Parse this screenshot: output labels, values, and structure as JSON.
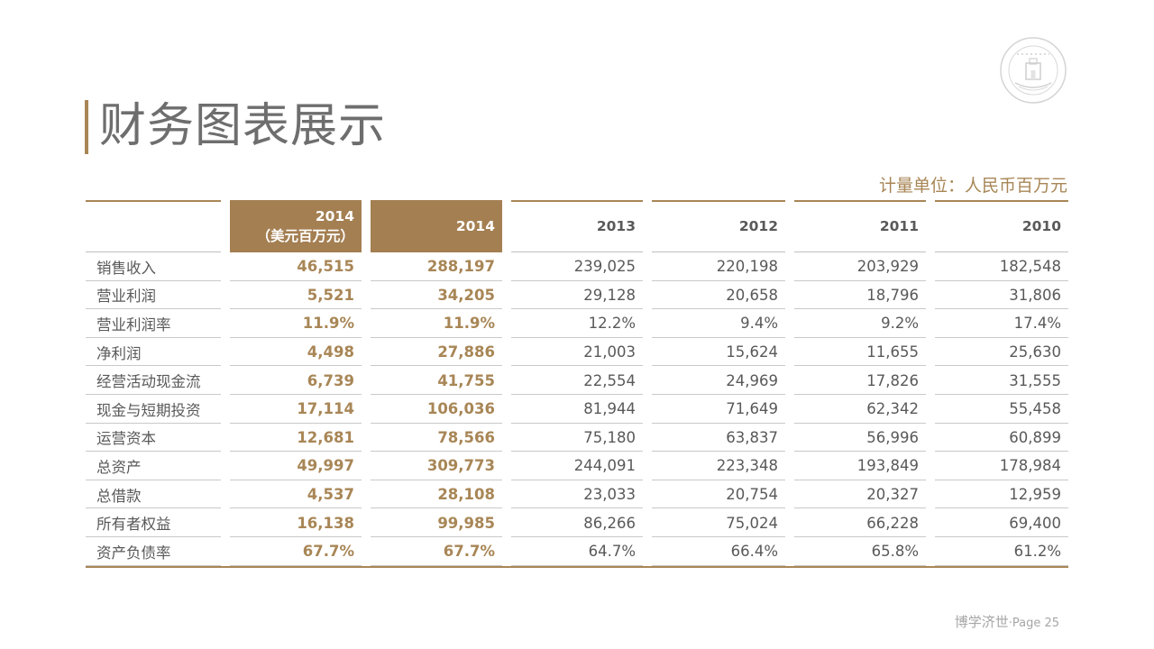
{
  "slide": {
    "title": "财务图表展示",
    "unit_label": "计量单位：人民币百万元",
    "footer_text": "博学济世",
    "footer_page": "·Page 25",
    "accent_color": "#a88656",
    "header_fill_color": "#a47f52",
    "seal_icon": "university-seal-icon"
  },
  "table": {
    "headers": [
      {
        "line1": "",
        "line2": ""
      },
      {
        "line1": "2014",
        "line2": "（美元百万元）"
      },
      {
        "line1": "2014",
        "line2": ""
      },
      {
        "line1": "2013",
        "line2": ""
      },
      {
        "line1": "2012",
        "line2": ""
      },
      {
        "line1": "2011",
        "line2": ""
      },
      {
        "line1": "2010",
        "line2": ""
      }
    ],
    "rows": [
      {
        "label": "销售收入",
        "v": [
          "46,515",
          "288,197",
          "239,025",
          "220,198",
          "203,929",
          "182,548"
        ]
      },
      {
        "label": "营业利润",
        "v": [
          "5,521",
          "34,205",
          "29,128",
          "20,658",
          "18,796",
          "31,806"
        ]
      },
      {
        "label": "营业利润率",
        "v": [
          "11.9%",
          "11.9%",
          "12.2%",
          "9.4%",
          "9.2%",
          "17.4%"
        ]
      },
      {
        "label": "净利润",
        "v": [
          "4,498",
          "27,886",
          "21,003",
          "15,624",
          "11,655",
          "25,630"
        ]
      },
      {
        "label": "经营活动现金流",
        "v": [
          "6,739",
          "41,755",
          "22,554",
          "24,969",
          "17,826",
          "31,555"
        ]
      },
      {
        "label": "现金与短期投资",
        "v": [
          "17,114",
          "106,036",
          "81,944",
          "71,649",
          "62,342",
          "55,458"
        ]
      },
      {
        "label": "运营资本",
        "v": [
          "12,681",
          "78,566",
          "75,180",
          "63,837",
          "56,996",
          "60,899"
        ]
      },
      {
        "label": "总资产",
        "v": [
          "49,997",
          "309,773",
          "244,091",
          "223,348",
          "193,849",
          "178,984"
        ]
      },
      {
        "label": "总借款",
        "v": [
          "4,537",
          "28,108",
          "23,033",
          "20,754",
          "20,327",
          "12,959"
        ]
      },
      {
        "label": "所有者权益",
        "v": [
          "16,138",
          "99,985",
          "86,266",
          "75,024",
          "66,228",
          "69,400"
        ]
      },
      {
        "label": "资产负债率",
        "v": [
          "67.7%",
          "67.7%",
          "64.7%",
          "66.4%",
          "65.8%",
          "61.2%"
        ]
      }
    ]
  }
}
